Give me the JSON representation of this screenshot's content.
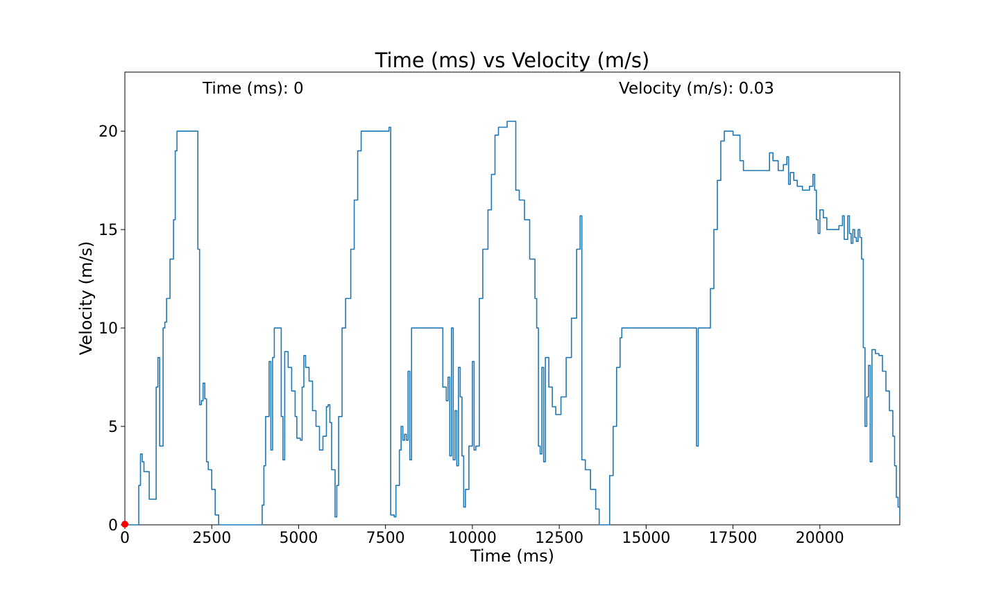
{
  "chart_data": {
    "type": "line",
    "title": "Time (ms) vs Velocity (m/s)",
    "xlabel": "Time (ms)",
    "ylabel": "Velocity (m/s)",
    "xlim": [
      0,
      22300
    ],
    "ylim": [
      0,
      23
    ],
    "x_ticks": [
      0,
      2500,
      5000,
      7500,
      10000,
      12500,
      15000,
      17500,
      20000
    ],
    "y_ticks": [
      0,
      5,
      10,
      15,
      20
    ],
    "grid": false,
    "readouts": {
      "time_label": "Time (ms): 0",
      "velocity_label": "Velocity (m/s): 0.03"
    },
    "marker": {
      "x": 0,
      "y": 0.03,
      "color": "#ff0000"
    },
    "series": [
      {
        "color": "#1f77b4",
        "points": [
          [
            0,
            0
          ],
          [
            300,
            0
          ],
          [
            400,
            2.0
          ],
          [
            450,
            3.6
          ],
          [
            500,
            3.2
          ],
          [
            550,
            2.7
          ],
          [
            650,
            2.7
          ],
          [
            700,
            1.3
          ],
          [
            850,
            1.3
          ],
          [
            900,
            7.0
          ],
          [
            950,
            8.5
          ],
          [
            1000,
            4.0
          ],
          [
            1050,
            4.0
          ],
          [
            1100,
            10.0
          ],
          [
            1150,
            10.3
          ],
          [
            1200,
            11.5
          ],
          [
            1300,
            13.5
          ],
          [
            1400,
            15.5
          ],
          [
            1450,
            19.0
          ],
          [
            1500,
            20.0
          ],
          [
            2050,
            20.0
          ],
          [
            2100,
            14.0
          ],
          [
            2150,
            6.1
          ],
          [
            2200,
            6.3
          ],
          [
            2250,
            7.2
          ],
          [
            2300,
            6.4
          ],
          [
            2350,
            3.2
          ],
          [
            2400,
            2.8
          ],
          [
            2500,
            1.8
          ],
          [
            2600,
            0.5
          ],
          [
            2700,
            0
          ],
          [
            3000,
            0
          ],
          [
            3900,
            0
          ],
          [
            3950,
            1.0
          ],
          [
            4000,
            3.0
          ],
          [
            4050,
            5.5
          ],
          [
            4150,
            8.3
          ],
          [
            4200,
            3.8
          ],
          [
            4250,
            8.5
          ],
          [
            4300,
            10.0
          ],
          [
            4450,
            10.0
          ],
          [
            4500,
            5.5
          ],
          [
            4550,
            3.3
          ],
          [
            4600,
            8.8
          ],
          [
            4700,
            8.0
          ],
          [
            4800,
            6.8
          ],
          [
            4900,
            5.5
          ],
          [
            4950,
            4.4
          ],
          [
            5050,
            4.3
          ],
          [
            5100,
            7.0
          ],
          [
            5150,
            8.6
          ],
          [
            5200,
            8.0
          ],
          [
            5300,
            7.3
          ],
          [
            5400,
            5.8
          ],
          [
            5500,
            5.0
          ],
          [
            5600,
            3.8
          ],
          [
            5700,
            4.5
          ],
          [
            5800,
            6.0
          ],
          [
            5850,
            6.1
          ],
          [
            5900,
            5.2
          ],
          [
            5950,
            2.8
          ],
          [
            6050,
            0.4
          ],
          [
            6100,
            2.0
          ],
          [
            6150,
            5.5
          ],
          [
            6250,
            10.0
          ],
          [
            6350,
            11.5
          ],
          [
            6500,
            14.0
          ],
          [
            6600,
            16.5
          ],
          [
            6700,
            19.0
          ],
          [
            6800,
            20.0
          ],
          [
            7600,
            20.2
          ],
          [
            7650,
            0.5
          ],
          [
            7700,
            0.5
          ],
          [
            7750,
            0.4
          ],
          [
            7800,
            2.0
          ],
          [
            7900,
            3.8
          ],
          [
            7950,
            5.0
          ],
          [
            8000,
            4.3
          ],
          [
            8050,
            4.6
          ],
          [
            8100,
            4.3
          ],
          [
            8150,
            7.8
          ],
          [
            8200,
            3.3
          ],
          [
            8250,
            10.0
          ],
          [
            9100,
            10.0
          ],
          [
            9150,
            7.0
          ],
          [
            9250,
            6.3
          ],
          [
            9300,
            7.5
          ],
          [
            9350,
            3.5
          ],
          [
            9400,
            10.0
          ],
          [
            9450,
            3.3
          ],
          [
            9500,
            5.8
          ],
          [
            9550,
            3.0
          ],
          [
            9600,
            8.0
          ],
          [
            9650,
            6.5
          ],
          [
            9700,
            3.5
          ],
          [
            9750,
            0.9
          ],
          [
            9800,
            1.8
          ],
          [
            9900,
            4.0
          ],
          [
            10000,
            8.3
          ],
          [
            10050,
            3.8
          ],
          [
            10100,
            4.0
          ],
          [
            10200,
            11.5
          ],
          [
            10300,
            14.0
          ],
          [
            10450,
            16.0
          ],
          [
            10550,
            17.8
          ],
          [
            10650,
            19.8
          ],
          [
            10750,
            20.2
          ],
          [
            11000,
            20.5
          ],
          [
            11200,
            20.5
          ],
          [
            11250,
            17.0
          ],
          [
            11350,
            16.5
          ],
          [
            11500,
            15.5
          ],
          [
            11650,
            13.5
          ],
          [
            11800,
            11.5
          ],
          [
            11850,
            10.0
          ],
          [
            11900,
            4.0
          ],
          [
            11950,
            3.6
          ],
          [
            12000,
            8.0
          ],
          [
            12050,
            3.2
          ],
          [
            12100,
            8.5
          ],
          [
            12200,
            7.0
          ],
          [
            12300,
            6.0
          ],
          [
            12400,
            5.6
          ],
          [
            12450,
            5.6
          ],
          [
            12550,
            6.5
          ],
          [
            12700,
            8.5
          ],
          [
            12850,
            10.5
          ],
          [
            13000,
            14.0
          ],
          [
            13100,
            15.7
          ],
          [
            13150,
            3.3
          ],
          [
            13250,
            2.8
          ],
          [
            13400,
            1.8
          ],
          [
            13550,
            0.8
          ],
          [
            13650,
            0
          ],
          [
            13900,
            0
          ],
          [
            13950,
            2.5
          ],
          [
            14050,
            5.0
          ],
          [
            14150,
            8.0
          ],
          [
            14250,
            9.5
          ],
          [
            14300,
            10.0
          ],
          [
            16400,
            10.0
          ],
          [
            16450,
            4.0
          ],
          [
            16500,
            10.0
          ],
          [
            16750,
            10.0
          ],
          [
            16850,
            12.0
          ],
          [
            16950,
            15.0
          ],
          [
            17050,
            17.5
          ],
          [
            17150,
            19.5
          ],
          [
            17250,
            20.0
          ],
          [
            17450,
            20.0
          ],
          [
            17500,
            19.8
          ],
          [
            17650,
            19.8
          ],
          [
            17700,
            18.5
          ],
          [
            17800,
            18.0
          ],
          [
            18500,
            18.0
          ],
          [
            18550,
            18.9
          ],
          [
            18650,
            18.5
          ],
          [
            18800,
            18.0
          ],
          [
            18950,
            18.3
          ],
          [
            19050,
            18.7
          ],
          [
            19100,
            17.3
          ],
          [
            19150,
            17.9
          ],
          [
            19250,
            17.5
          ],
          [
            19350,
            17.2
          ],
          [
            19500,
            17.0
          ],
          [
            19700,
            17.2
          ],
          [
            19800,
            17.8
          ],
          [
            19850,
            17.0
          ],
          [
            19900,
            15.5
          ],
          [
            19950,
            14.8
          ],
          [
            20000,
            16.0
          ],
          [
            20100,
            15.6
          ],
          [
            20200,
            15.0
          ],
          [
            20400,
            15.0
          ],
          [
            20550,
            15.2
          ],
          [
            20650,
            15.7
          ],
          [
            20700,
            14.5
          ],
          [
            20800,
            15.7
          ],
          [
            20850,
            14.8
          ],
          [
            20900,
            14.3
          ],
          [
            20950,
            15.0
          ],
          [
            21000,
            14.6
          ],
          [
            21050,
            14.4
          ],
          [
            21100,
            15.0
          ],
          [
            21150,
            14.6
          ],
          [
            21200,
            13.5
          ],
          [
            21250,
            9.0
          ],
          [
            21300,
            5.0
          ],
          [
            21350,
            6.5
          ],
          [
            21400,
            8.1
          ],
          [
            21450,
            3.2
          ],
          [
            21500,
            8.9
          ],
          [
            21600,
            8.7
          ],
          [
            21700,
            8.6
          ],
          [
            21800,
            7.8
          ],
          [
            21900,
            6.8
          ],
          [
            22000,
            5.8
          ],
          [
            22100,
            4.5
          ],
          [
            22150,
            3.0
          ],
          [
            22200,
            1.4
          ],
          [
            22250,
            0.9
          ],
          [
            22300,
            0.4
          ]
        ]
      }
    ]
  }
}
